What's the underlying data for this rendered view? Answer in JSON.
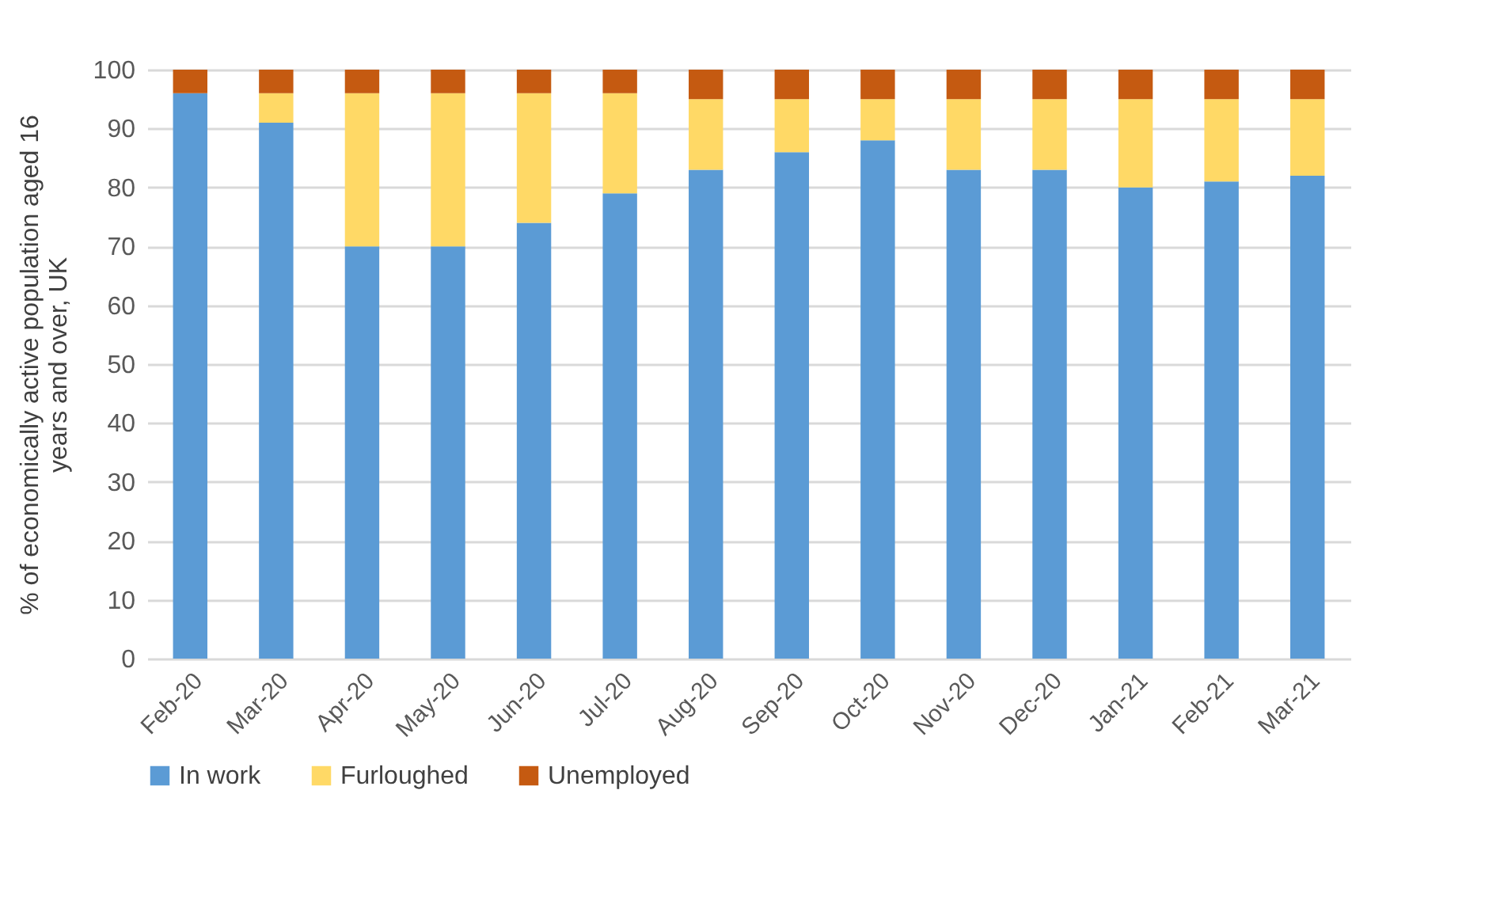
{
  "chart_data": {
    "type": "bar",
    "stacked": true,
    "ylabel": "% of economically active population aged 16 years and over, UK",
    "categories": [
      "Feb-20",
      "Mar-20",
      "Apr-20",
      "May-20",
      "Jun-20",
      "Jul-20",
      "Aug-20",
      "Sep-20",
      "Oct-20",
      "Nov-20",
      "Dec-20",
      "Jan-21",
      "Feb-21",
      "Mar-21"
    ],
    "series": [
      {
        "name": "In work",
        "color": "#5b9bd5",
        "values": [
          96,
          91,
          70,
          70,
          74,
          79,
          83,
          86,
          88,
          83,
          83,
          80,
          81,
          82
        ]
      },
      {
        "name": "Furloughed",
        "color": "#ffd966",
        "values": [
          0,
          5,
          26,
          26,
          22,
          17,
          12,
          9,
          7,
          12,
          12,
          15,
          14,
          13
        ]
      },
      {
        "name": "Unemployed",
        "color": "#c55a11",
        "values": [
          4,
          4,
          4,
          4,
          4,
          4,
          5,
          5,
          5,
          5,
          5,
          5,
          5,
          5
        ]
      }
    ],
    "ylim": [
      0,
      100
    ],
    "yticks": [
      0,
      10,
      20,
      30,
      40,
      50,
      60,
      70,
      80,
      90,
      100
    ],
    "grid": "y",
    "legend": "bottom"
  }
}
